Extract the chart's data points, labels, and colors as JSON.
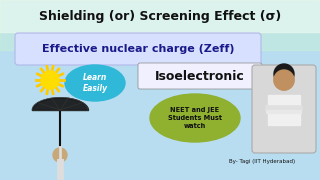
{
  "title1": "Shielding (or) Screening Effect (σ)",
  "title2": "Effective nuclear charge (Zeff)",
  "title3": "Isoelectronic",
  "learn_text": "Learn\nEasily",
  "neet_text": "NEET and JEE\nStudents Must\nwatch",
  "byline": "By- Tagi (IIT Hyderabad)",
  "bg_color_top": "#c8f0d8",
  "bg_color_mid": "#b8ddf0",
  "bg_color_bottom": "#c0d8f0",
  "title1_color": "#111111",
  "title1_bg": "#a8e8d0",
  "title2_bg": "#8090d8",
  "title2_text_color": "#1a1a8a",
  "title2_box_color": "#d8e0ff",
  "title3_color": "#111111",
  "learn_bubble_color": "#30b8d8",
  "learn_text_color": "#ffffff",
  "neet_bg_color": "#90b030",
  "neet_text_color": "#111111",
  "byline_color": "#111111",
  "sun_color": "#ffdd00",
  "sun_ray_color": "#ffcc00",
  "umbrella_color": "#111111",
  "photo_bg": "#d8d8d8",
  "photo_border": "#aaaaaa"
}
